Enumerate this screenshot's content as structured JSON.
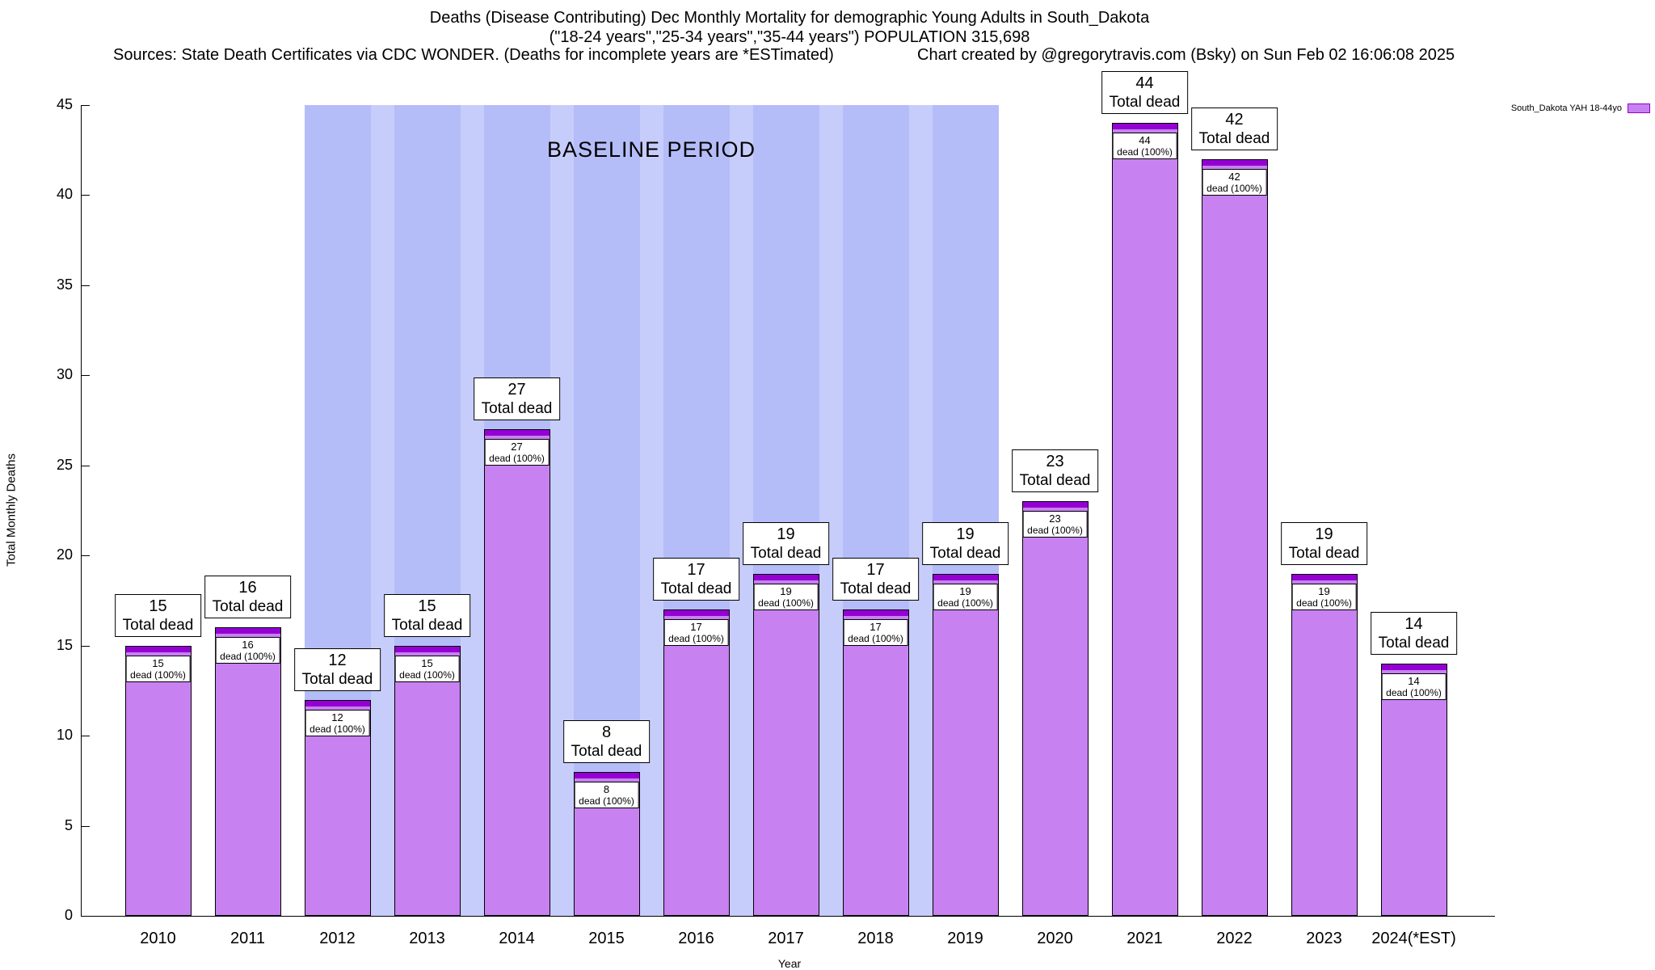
{
  "title": {
    "line1": "Deaths (Disease Contributing) Dec Monthly Mortality for demographic Young Adults in South_Dakota",
    "line2": "(\"18-24 years\",\"25-34 years\",\"35-44 years\") POPULATION 315,698",
    "sources": "Sources: State Death Certificates via CDC WONDER. (Deaths for incomplete years are *ESTimated)",
    "credit": "Chart created by @gregorytravis.com (Bsky) on Sun Feb 02 16:06:08 2025"
  },
  "legend": {
    "label": "South_Dakota YAH 18-44yo"
  },
  "baseline": {
    "label": "BASELINE PERIOD",
    "start_year": "2012",
    "end_year": "2019"
  },
  "axes": {
    "ylabel": "Total Monthly Deaths",
    "xlabel": "Year",
    "yticks": [
      0,
      5,
      10,
      15,
      20,
      25,
      30,
      35,
      40,
      45
    ],
    "ylim": [
      0,
      45
    ]
  },
  "colors": {
    "bar_fill": "#c781f0",
    "bar_cap": "#9400d3",
    "baseline_fill": "#b5bdf8",
    "baseline_stripe": "#c7cdfb"
  },
  "chart_data": {
    "type": "bar",
    "title": "Deaths (Disease Contributing) Dec Monthly Mortality for demographic Young Adults in South_Dakota",
    "subtitle": "(\"18-24 years\",\"25-34 years\",\"35-44 years\") POPULATION 315,698",
    "xlabel": "Year",
    "ylabel": "Total Monthly Deaths",
    "ylim": [
      0,
      45
    ],
    "grid": false,
    "legend_position": "top-right",
    "series_name": "South_Dakota YAH 18-44yo",
    "categories": [
      "2010",
      "2011",
      "2012",
      "2013",
      "2014",
      "2015",
      "2016",
      "2017",
      "2018",
      "2019",
      "2020",
      "2021",
      "2022",
      "2023",
      "2024(*EST)"
    ],
    "values": [
      15,
      16,
      12,
      15,
      27,
      8,
      17,
      19,
      17,
      19,
      23,
      44,
      42,
      19,
      14
    ],
    "annotation_top": "Total dead",
    "annotation_inner": "dead (100%)",
    "baseline_period": [
      "2012",
      "2019"
    ]
  }
}
